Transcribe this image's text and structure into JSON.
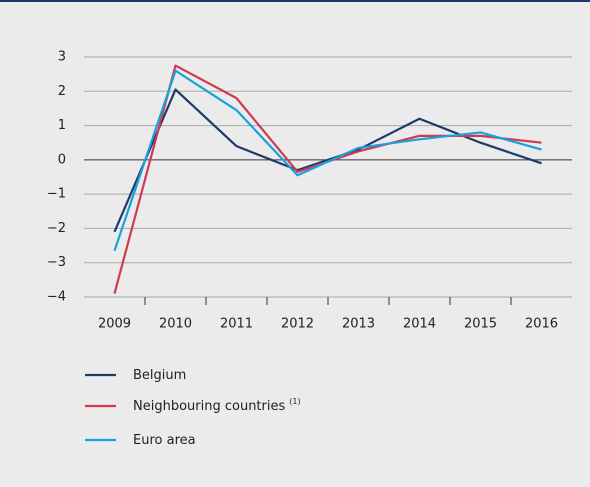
{
  "chart_data": {
    "type": "line",
    "categories": [
      "2009",
      "2010",
      "2011",
      "2012",
      "2013",
      "2014",
      "2015",
      "2016"
    ],
    "series": [
      {
        "name": "Belgium",
        "color": "#1f3a68",
        "values": [
          -2.1,
          2.05,
          0.4,
          -0.3,
          0.3,
          1.2,
          0.5,
          -0.1
        ]
      },
      {
        "name": "Neighbouring countries",
        "note": "(1)",
        "color": "#d0394e",
        "values": [
          -3.9,
          2.75,
          1.8,
          -0.35,
          0.25,
          0.7,
          0.7,
          0.5
        ]
      },
      {
        "name": "Euro area",
        "color": "#16a2dc",
        "values": [
          -2.65,
          2.6,
          1.45,
          -0.45,
          0.35,
          0.6,
          0.8,
          0.3
        ]
      }
    ],
    "ylim": [
      -4,
      3
    ],
    "yticks": [
      {
        "value": -4,
        "label": "−4"
      },
      {
        "value": -3,
        "label": "−3"
      },
      {
        "value": -2,
        "label": "−2"
      },
      {
        "value": -1,
        "label": "−1"
      },
      0,
      1,
      2,
      3
    ],
    "grid": true
  }
}
